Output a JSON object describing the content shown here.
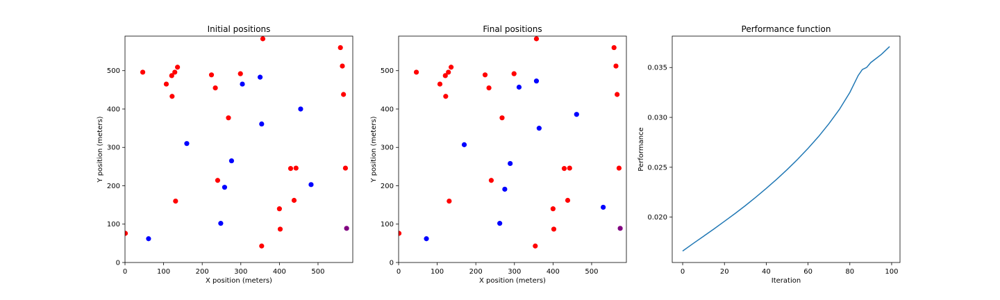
{
  "colors": {
    "red": "#ff0000",
    "blue": "#0000ff",
    "purple": "#800080",
    "line": "#1f77b4",
    "axes": "#000000",
    "background": "#ffffff"
  },
  "chart_data": [
    {
      "type": "scatter",
      "title": "Initial positions",
      "xlabel": "X position (meters)",
      "ylabel": "Y position (meters)",
      "xlim": [
        0,
        590
      ],
      "ylim": [
        0,
        590
      ],
      "xticks": [
        0,
        100,
        200,
        300,
        400,
        500
      ],
      "yticks": [
        0,
        100,
        200,
        300,
        400,
        500
      ],
      "grid": false,
      "series": [
        {
          "color": "red",
          "points": [
            [
              1,
              76
            ],
            [
              46,
              496
            ],
            [
              107,
              465
            ],
            [
              121,
              487
            ],
            [
              122,
              433
            ],
            [
              129,
              496
            ],
            [
              136,
              509
            ],
            [
              131,
              160
            ],
            [
              224,
              489
            ],
            [
              234,
              455
            ],
            [
              268,
              377
            ],
            [
              240,
              214
            ],
            [
              299,
              492
            ],
            [
              357,
              583
            ],
            [
              558,
              560
            ],
            [
              563,
              512
            ],
            [
              566,
              438
            ],
            [
              571,
              246
            ],
            [
              429,
              245
            ],
            [
              443,
              246
            ],
            [
              438,
              162
            ],
            [
              400,
              140
            ],
            [
              402,
              87
            ],
            [
              354,
              43
            ]
          ]
        },
        {
          "color": "blue",
          "points": [
            [
              61,
              62
            ],
            [
              160,
              310
            ],
            [
              248,
              102
            ],
            [
              258,
              196
            ],
            [
              276,
              265
            ],
            [
              304,
              465
            ],
            [
              350,
              483
            ],
            [
              354,
              361
            ],
            [
              455,
              400
            ],
            [
              482,
              203
            ]
          ]
        },
        {
          "color": "purple",
          "points": [
            [
              574,
              89
            ]
          ]
        }
      ]
    },
    {
      "type": "scatter",
      "title": "Final positions",
      "xlabel": "X position (meters)",
      "ylabel": "Y position (meters)",
      "xlim": [
        0,
        590
      ],
      "ylim": [
        0,
        590
      ],
      "xticks": [
        0,
        100,
        200,
        300,
        400,
        500
      ],
      "yticks": [
        0,
        100,
        200,
        300,
        400,
        500
      ],
      "grid": false,
      "series": [
        {
          "color": "red",
          "points": [
            [
              1,
              76
            ],
            [
              46,
              496
            ],
            [
              107,
              465
            ],
            [
              121,
              487
            ],
            [
              122,
              433
            ],
            [
              129,
              496
            ],
            [
              136,
              509
            ],
            [
              131,
              160
            ],
            [
              224,
              489
            ],
            [
              234,
              455
            ],
            [
              268,
              377
            ],
            [
              240,
              214
            ],
            [
              299,
              492
            ],
            [
              357,
              583
            ],
            [
              558,
              560
            ],
            [
              563,
              512
            ],
            [
              566,
              438
            ],
            [
              571,
              246
            ],
            [
              429,
              245
            ],
            [
              443,
              246
            ],
            [
              438,
              162
            ],
            [
              400,
              140
            ],
            [
              402,
              87
            ],
            [
              354,
              43
            ]
          ]
        },
        {
          "color": "blue",
          "points": [
            [
              72,
              62
            ],
            [
              170,
              307
            ],
            [
              262,
              102
            ],
            [
              275,
              191
            ],
            [
              289,
              258
            ],
            [
              312,
              457
            ],
            [
              357,
              473
            ],
            [
              364,
              350
            ],
            [
              461,
              386
            ],
            [
              530,
              144
            ]
          ]
        },
        {
          "color": "purple",
          "points": [
            [
              574,
              89
            ]
          ]
        }
      ]
    },
    {
      "type": "line",
      "title": "Performance function",
      "xlabel": "Iteration",
      "ylabel": "Performance",
      "xlim": [
        -5,
        104
      ],
      "ylim": [
        0.01545,
        0.03815
      ],
      "xticks": [
        0,
        20,
        40,
        60,
        80,
        100
      ],
      "yticks": [
        0.02,
        0.025,
        0.03,
        0.035
      ],
      "ytick_labels": [
        "0.020",
        "0.025",
        "0.030",
        "0.035"
      ],
      "grid": false,
      "series": [
        {
          "color": "line",
          "x": [
            0,
            5,
            10,
            15,
            20,
            25,
            30,
            35,
            40,
            45,
            50,
            55,
            60,
            65,
            70,
            75,
            80,
            84,
            86,
            88,
            90,
            95,
            99
          ],
          "y": [
            0.0166,
            0.01735,
            0.01808,
            0.01882,
            0.01958,
            0.02035,
            0.02115,
            0.022,
            0.02288,
            0.0238,
            0.02477,
            0.0258,
            0.0269,
            0.02807,
            0.02937,
            0.0308,
            0.0325,
            0.0342,
            0.0348,
            0.035,
            0.0355,
            0.0363,
            0.0371
          ]
        }
      ]
    }
  ]
}
